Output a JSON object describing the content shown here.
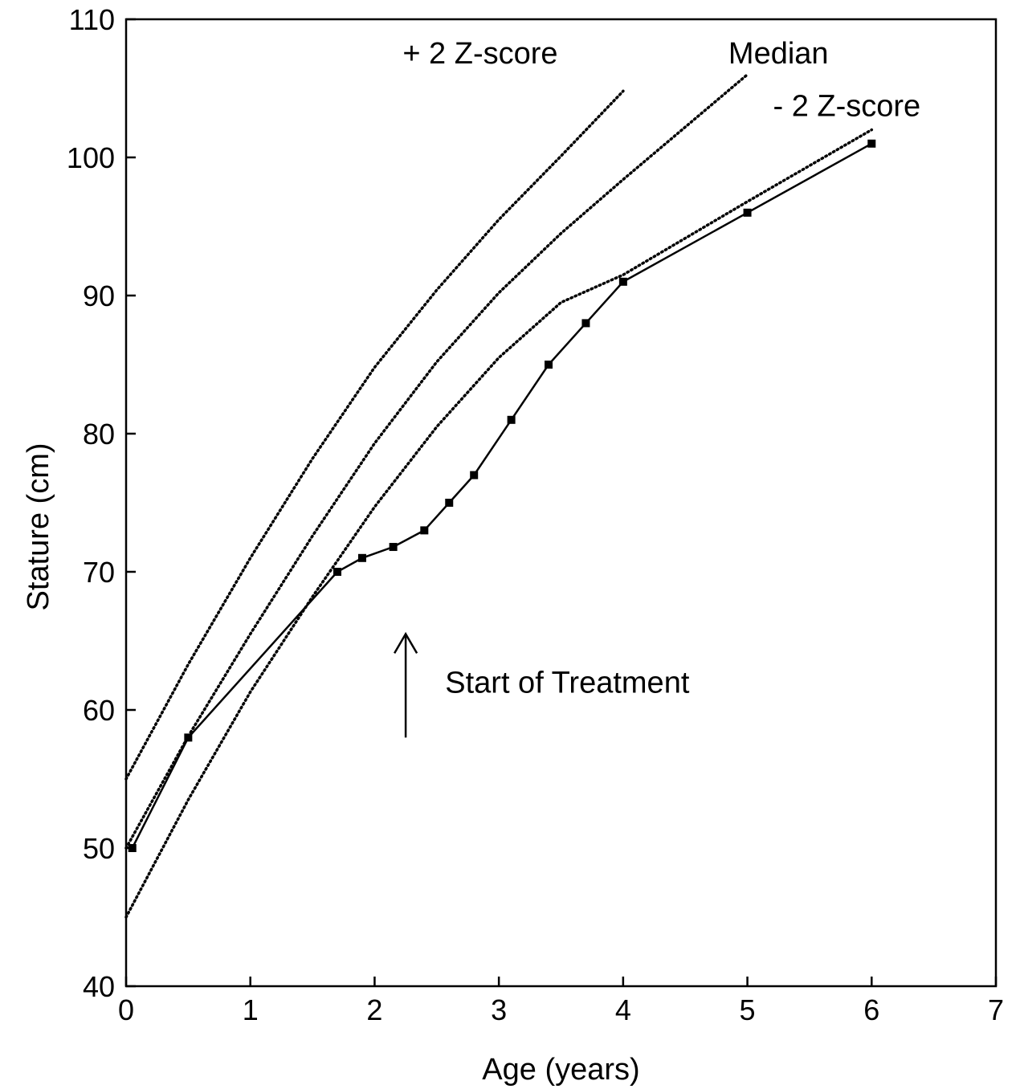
{
  "chart_data": {
    "type": "line",
    "xlabel": "Age (years)",
    "ylabel": "Stature (cm)",
    "xlim": [
      0,
      7
    ],
    "ylim": [
      40,
      110
    ],
    "xticks": [
      0,
      1,
      2,
      3,
      4,
      5,
      6,
      7
    ],
    "yticks": [
      40,
      50,
      60,
      70,
      80,
      90,
      100,
      110
    ],
    "grid": false,
    "series": [
      {
        "name": "+ 2 Z-score",
        "style": "dotted",
        "color": "#000000",
        "x": [
          0,
          0.5,
          1,
          1.5,
          2,
          2.5,
          3,
          3.5,
          4
        ],
        "y": [
          55,
          63.3,
          71,
          78.2,
          84.8,
          90.4,
          95.5,
          100.1,
          104.8
        ]
      },
      {
        "name": "Median",
        "style": "dotted",
        "color": "#000000",
        "x": [
          0,
          0.5,
          1,
          1.5,
          2,
          2.5,
          3,
          3.5,
          4,
          4.5,
          5
        ],
        "y": [
          50,
          58.1,
          65.5,
          72.6,
          79.3,
          85.2,
          90.2,
          94.5,
          98.4,
          102.2,
          106
        ]
      },
      {
        "name": "- 2 Z-score",
        "style": "dotted",
        "color": "#000000",
        "x": [
          0,
          0.5,
          1,
          1.5,
          2,
          2.5,
          3,
          3.5,
          4,
          5,
          6
        ],
        "y": [
          45,
          53.5,
          61.3,
          68.2,
          74.7,
          80.5,
          85.5,
          89.5,
          91.5,
          96.8,
          102
        ]
      },
      {
        "name": "",
        "style": "solid-markers",
        "color": "#000000",
        "x": [
          0.05,
          0.5,
          1.7,
          1.9,
          2.15,
          2.4,
          2.6,
          2.8,
          3.1,
          3.4,
          3.7,
          4.0,
          5.0,
          6.0
        ],
        "y": [
          50,
          58,
          70,
          71,
          71.8,
          73,
          75,
          77,
          81,
          85,
          88,
          91,
          96,
          101
        ]
      }
    ],
    "annotations": [
      {
        "text": "Start of Treatment",
        "arrow_x": 2.25,
        "arrow_y_from": 58,
        "arrow_y_to": 65.5,
        "text_x": 2.6,
        "text_y": 62
      }
    ]
  }
}
